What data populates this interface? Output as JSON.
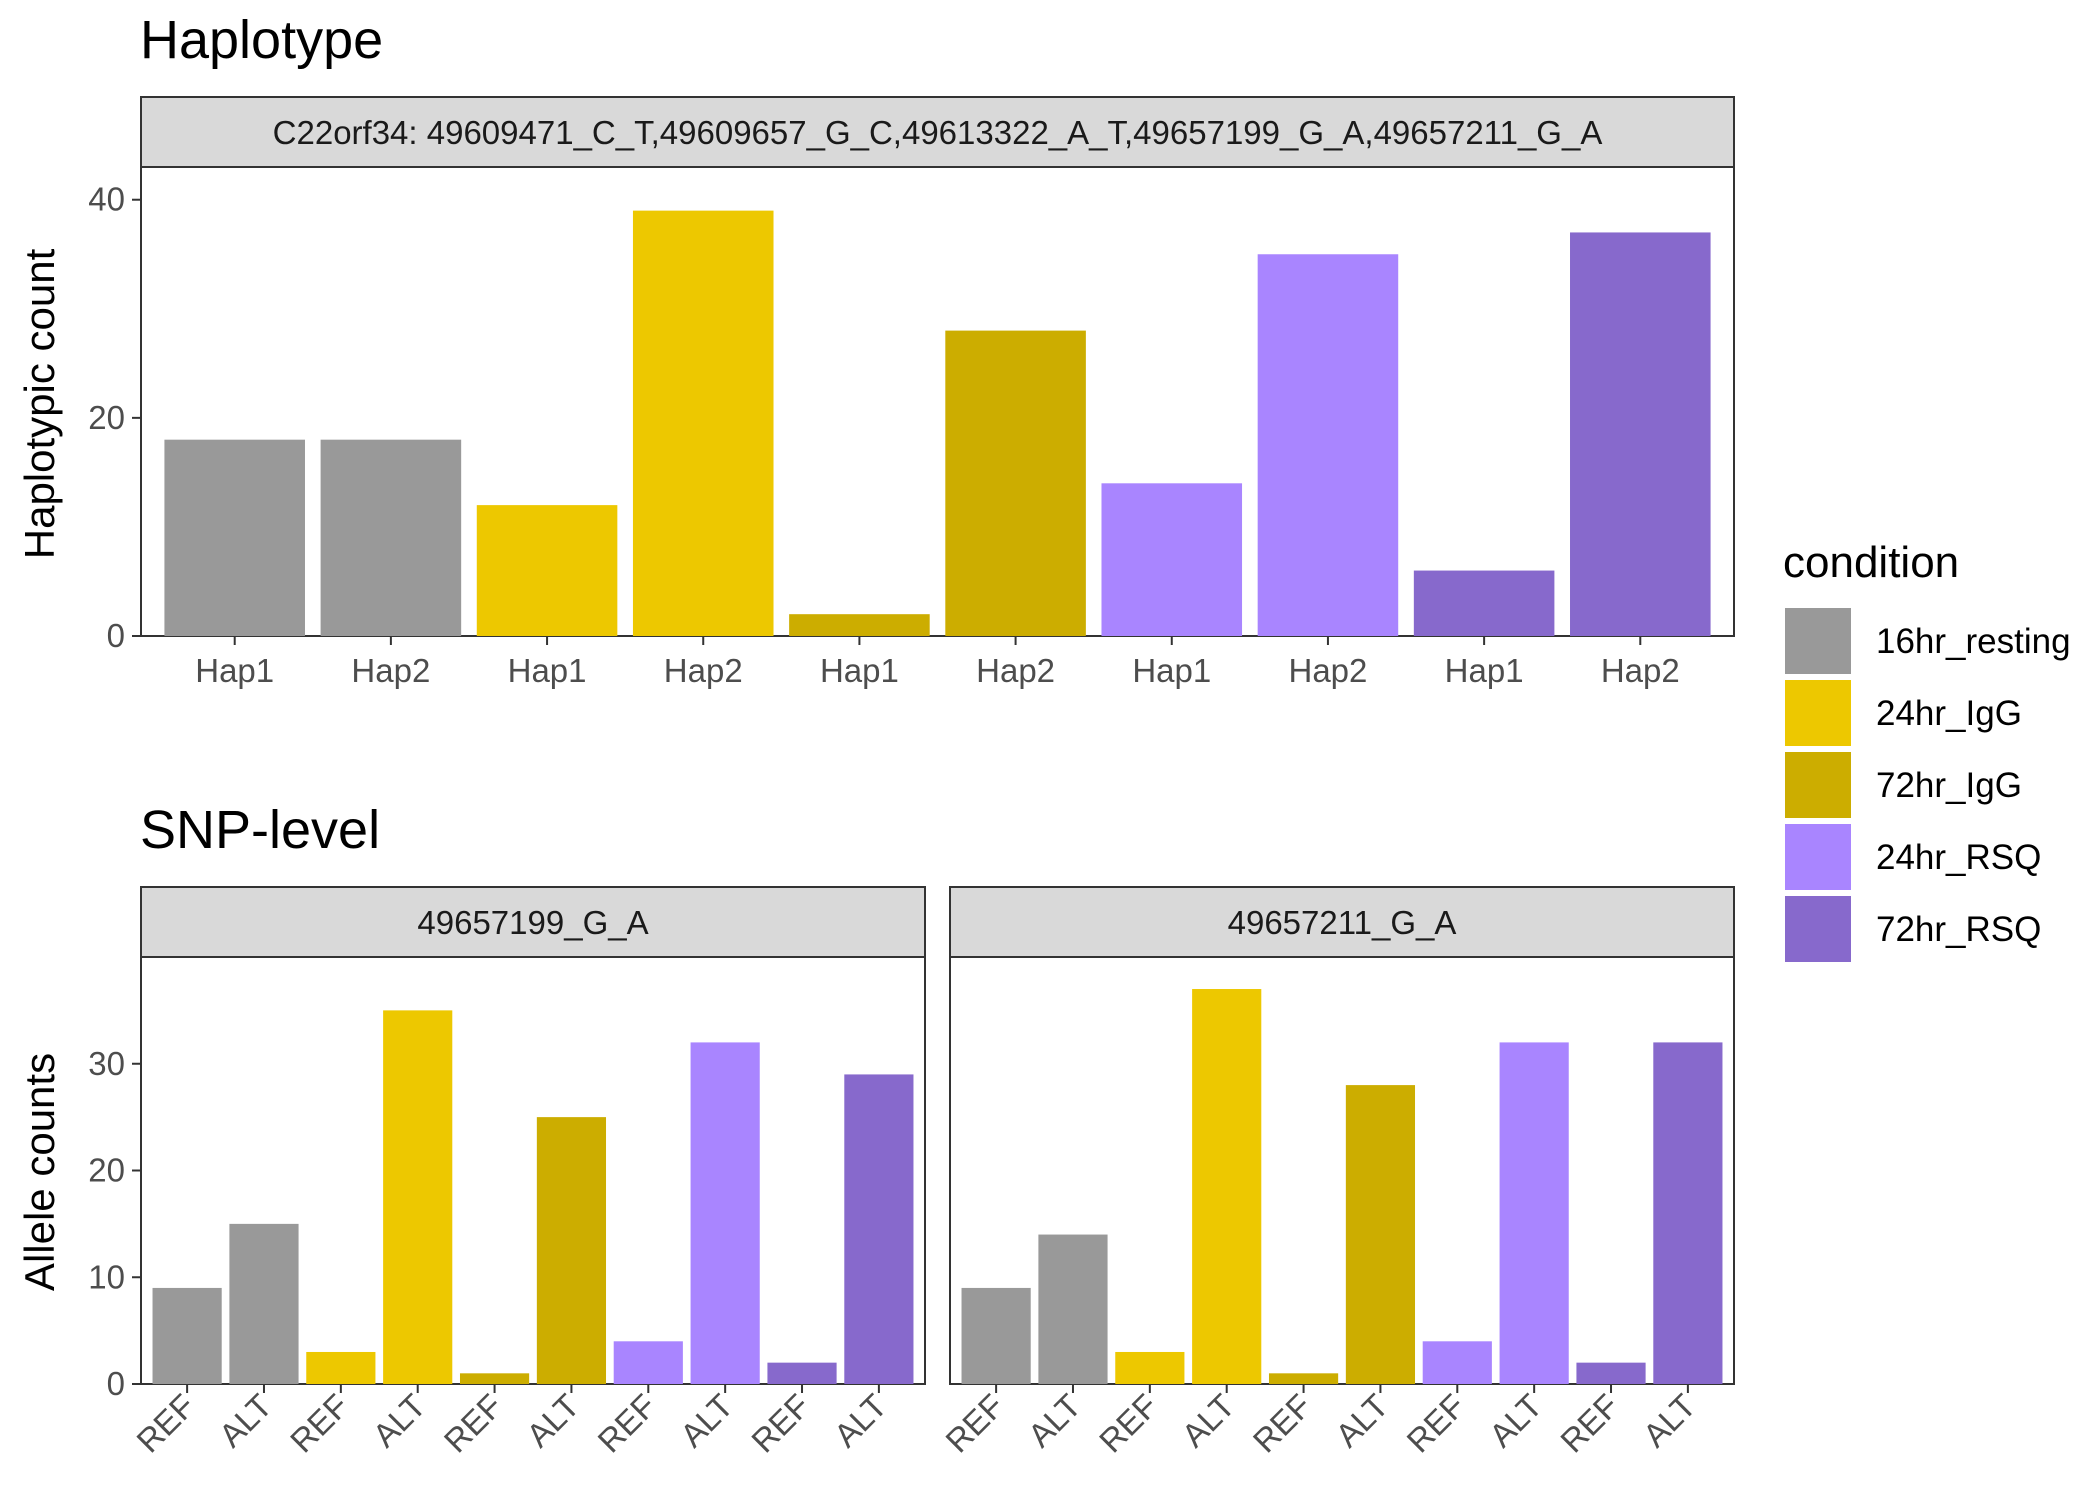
{
  "colors": {
    "16hr_resting": "#999999",
    "24hr_IgG": "#EDC800",
    "72hr_IgG": "#CCAD00",
    "24hr_RSQ": "#A985FF",
    "72hr_RSQ": "#8769CC"
  },
  "legend": {
    "title": "condition",
    "items": [
      "16hr_resting",
      "24hr_IgG",
      "72hr_IgG",
      "24hr_RSQ",
      "72hr_RSQ"
    ],
    "placement": "right"
  },
  "chart_data": [
    {
      "type": "bar",
      "title": "Haplotype",
      "ylabel": "Haplotypic count",
      "xlabel": "",
      "ylim": [
        0,
        43
      ],
      "yticks": [
        0,
        20,
        40
      ],
      "grid": false,
      "panels": [
        {
          "strip": "C22orf34: 49609471_C_T,49609657_G_C,49613322_A_T,49657199_G_A,49657211_G_A",
          "categories": [
            "Hap1",
            "Hap2",
            "Hap1",
            "Hap2",
            "Hap1",
            "Hap2",
            "Hap1",
            "Hap2",
            "Hap1",
            "Hap2"
          ],
          "conditions": [
            "16hr_resting",
            "16hr_resting",
            "24hr_IgG",
            "24hr_IgG",
            "72hr_IgG",
            "72hr_IgG",
            "24hr_RSQ",
            "24hr_RSQ",
            "72hr_RSQ",
            "72hr_RSQ"
          ],
          "values": [
            18,
            18,
            12,
            39,
            2,
            28,
            14,
            35,
            6,
            37
          ]
        }
      ]
    },
    {
      "type": "bar",
      "title": "SNP-level",
      "ylabel": "Allele counts",
      "xlabel": "",
      "ylim": [
        0,
        40
      ],
      "yticks": [
        0,
        10,
        20,
        30
      ],
      "grid": false,
      "panels": [
        {
          "strip": "49657199_G_A",
          "categories": [
            "REF",
            "ALT",
            "REF",
            "ALT",
            "REF",
            "ALT",
            "REF",
            "ALT",
            "REF",
            "ALT"
          ],
          "conditions": [
            "16hr_resting",
            "16hr_resting",
            "24hr_IgG",
            "24hr_IgG",
            "72hr_IgG",
            "72hr_IgG",
            "24hr_RSQ",
            "24hr_RSQ",
            "72hr_RSQ",
            "72hr_RSQ"
          ],
          "values": [
            9,
            15,
            3,
            35,
            1,
            25,
            4,
            32,
            2,
            29
          ]
        },
        {
          "strip": "49657211_G_A",
          "categories": [
            "REF",
            "ALT",
            "REF",
            "ALT",
            "REF",
            "ALT",
            "REF",
            "ALT",
            "REF",
            "ALT"
          ],
          "conditions": [
            "16hr_resting",
            "16hr_resting",
            "24hr_IgG",
            "24hr_IgG",
            "72hr_IgG",
            "72hr_IgG",
            "24hr_RSQ",
            "24hr_RSQ",
            "72hr_RSQ",
            "72hr_RSQ"
          ],
          "values": [
            9,
            14,
            3,
            37,
            1,
            28,
            4,
            32,
            2,
            32
          ]
        }
      ]
    }
  ]
}
